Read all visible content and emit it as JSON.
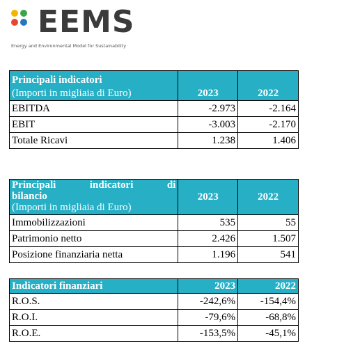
{
  "logo": {
    "wordmark": "EEMS",
    "tagline": "Energy and Environmental Model for Sustainability",
    "dot_colors": [
      "#f5b400",
      "#3aa64a",
      "#e8452e",
      "#1f78c1"
    ]
  },
  "table1": {
    "title": "Principali indicatori",
    "subtitle": "(Importi in migliaia di Euro)",
    "year1": "2023",
    "year2": "2022",
    "rows": [
      {
        "label": "EBITDA",
        "v2023": "-2.973",
        "v2022": "-2.164"
      },
      {
        "label": "EBIT",
        "v2023": "-3.003",
        "v2022": "-2.170"
      },
      {
        "label": "Totale Ricavi",
        "v2023": "1.238",
        "v2022": "1.406"
      }
    ]
  },
  "table2": {
    "title_words": [
      "Principali",
      "indicatori",
      "di"
    ],
    "title_line2": "bilancio",
    "subtitle": "(Importi in migliaia di Euro)",
    "year1": "2023",
    "year2": "2022",
    "rows": [
      {
        "label": "Immobilizzazioni",
        "v2023": "535",
        "v2022": "55"
      },
      {
        "label": "Patrimonio netto",
        "v2023": "2.426",
        "v2022": "1.507"
      },
      {
        "label": "Posizione finanziaria netta",
        "v2023": "1.196",
        "v2022": "541"
      }
    ]
  },
  "table3": {
    "title": "Indicatori finanziari",
    "year1": "2023",
    "year2": "2022",
    "rows": [
      {
        "label": "R.O.S.",
        "v2023": "-242,6%",
        "v2022": "-154,4%"
      },
      {
        "label": "R.O.I.",
        "v2023": "-79,6%",
        "v2022": "-68,8%"
      },
      {
        "label": "R.O.E.",
        "v2023": "-153,5%",
        "v2022": "-45,1%"
      }
    ]
  }
}
